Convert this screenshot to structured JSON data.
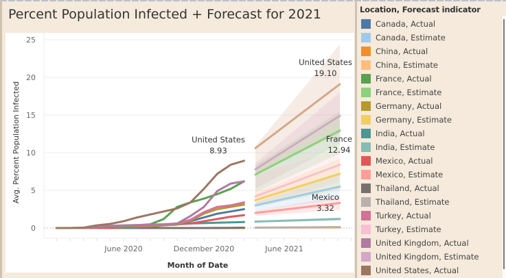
{
  "title": "Percent Population Infected + Forecast for 2021",
  "legend": {
    "title": "Location, Forecast indicator",
    "items": [
      {
        "label": "Canada, Actual",
        "color": "#4e79a7"
      },
      {
        "label": "Canada, Estimate",
        "color": "#a0cbe8"
      },
      {
        "label": "China, Actual",
        "color": "#f28e2b"
      },
      {
        "label": "China, Estimate",
        "color": "#ffbe7d"
      },
      {
        "label": "France, Actual",
        "color": "#59a14f"
      },
      {
        "label": "France, Estimate",
        "color": "#8cd17d"
      },
      {
        "label": "Germany, Actual",
        "color": "#b6992d"
      },
      {
        "label": "Germany, Estimate",
        "color": "#f1ce63"
      },
      {
        "label": "India, Actual",
        "color": "#499894"
      },
      {
        "label": "India, Estimate",
        "color": "#86bcb6"
      },
      {
        "label": "Mexico, Actual",
        "color": "#e15759"
      },
      {
        "label": "Mexico, Estimate",
        "color": "#ff9d9a"
      },
      {
        "label": "Thailand, Actual",
        "color": "#79706e"
      },
      {
        "label": "Thailand, Estimate",
        "color": "#bab0ac"
      },
      {
        "label": "Turkey, Actual",
        "color": "#d37295"
      },
      {
        "label": "Turkey, Estimate",
        "color": "#fabfd2"
      },
      {
        "label": "United Kingdom, Actual",
        "color": "#b07aa1"
      },
      {
        "label": "United Kingdom, Estimate",
        "color": "#d4a6c8"
      },
      {
        "label": "United States, Actual",
        "color": "#9d7660"
      }
    ]
  },
  "chart_data": {
    "type": "line",
    "title": "Percent Population Infected + Forecast for 2021",
    "xlabel": "Month of Date",
    "ylabel": "Avg. Percent Population Infected",
    "ylim": [
      0,
      25
    ],
    "yticks": [
      0,
      5,
      10,
      15,
      20,
      25
    ],
    "xticks": [
      {
        "label": "June 2020",
        "month": 5
      },
      {
        "label": "December 2020",
        "month": 11
      },
      {
        "label": "June 2021",
        "month": 17
      }
    ],
    "x_months_actual": [
      0,
      1,
      2,
      3,
      4,
      5,
      6,
      7,
      8,
      9,
      10,
      11,
      12,
      13,
      14
    ],
    "x_months_estimate": [
      15,
      21
    ],
    "grid": true,
    "legend_position": "right",
    "actual_series": [
      {
        "name": "United States, Actual",
        "color": "#9d7660",
        "values": [
          0,
          0,
          0.05,
          0.35,
          0.55,
          0.9,
          1.4,
          1.8,
          2.2,
          2.6,
          3.4,
          5.2,
          7.2,
          8.4,
          8.93
        ]
      },
      {
        "name": "United Kingdom, Actual",
        "color": "#b07aa1",
        "values": [
          0,
          0,
          0.02,
          0.2,
          0.3,
          0.35,
          0.4,
          0.45,
          0.5,
          0.6,
          1.6,
          2.8,
          4.9,
          5.9,
          6.2
        ]
      },
      {
        "name": "France, Actual",
        "color": "#59a14f",
        "values": [
          0,
          0,
          0.02,
          0.15,
          0.25,
          0.3,
          0.35,
          0.5,
          1.2,
          2.8,
          3.4,
          3.9,
          4.5,
          5.2,
          6.2
        ]
      },
      {
        "name": "Turkey, Actual",
        "color": "#d37295",
        "values": [
          0,
          0,
          0.01,
          0.1,
          0.2,
          0.25,
          0.3,
          0.35,
          0.45,
          0.6,
          1.1,
          2.1,
          2.8,
          3.0,
          3.4
        ]
      },
      {
        "name": "Germany, Actual",
        "color": "#b6992d",
        "values": [
          0,
          0,
          0.02,
          0.15,
          0.2,
          0.22,
          0.25,
          0.3,
          0.35,
          0.5,
          1.0,
          1.9,
          2.5,
          2.8,
          3.1
        ]
      },
      {
        "name": "Canada, Actual",
        "color": "#4e79a7",
        "values": [
          0,
          0,
          0.01,
          0.1,
          0.2,
          0.25,
          0.3,
          0.33,
          0.36,
          0.45,
          0.9,
          1.4,
          1.9,
          2.2,
          2.5
        ]
      },
      {
        "name": "Mexico, Actual",
        "color": "#e15759",
        "values": [
          0,
          0,
          0,
          0.02,
          0.05,
          0.1,
          0.2,
          0.3,
          0.4,
          0.5,
          0.6,
          0.9,
          1.2,
          1.5,
          1.7
        ]
      },
      {
        "name": "India, Actual",
        "color": "#499894",
        "values": [
          0,
          0,
          0,
          0,
          0.01,
          0.03,
          0.1,
          0.2,
          0.35,
          0.5,
          0.6,
          0.65,
          0.7,
          0.75,
          0.8
        ]
      },
      {
        "name": "Thailand, Actual",
        "color": "#79706e",
        "values": [
          0,
          0,
          0,
          0,
          0,
          0,
          0,
          0,
          0,
          0,
          0,
          0,
          0.01,
          0.02,
          0.04
        ]
      },
      {
        "name": "China, Actual",
        "color": "#f28e2b",
        "values": [
          0,
          0,
          0,
          0,
          0,
          0,
          0,
          0,
          0,
          0,
          0,
          0,
          0,
          0,
          0
        ]
      }
    ],
    "estimate_series": [
      {
        "name": "United States, Estimate",
        "color": "#d5a88a",
        "start": 10.6,
        "end": 19.1,
        "lower": [
          7.2,
          12.6
        ],
        "upper": [
          10.9,
          24.4
        ]
      },
      {
        "name": "United Kingdom, Estimate",
        "color": "#d4a6c8",
        "start": 7.8,
        "end": 14.9,
        "lower": [
          5.2,
          11.2
        ],
        "upper": [
          8.6,
          18.0
        ]
      },
      {
        "name": "France, Estimate",
        "color": "#8cd17d",
        "start": 7.1,
        "end": 12.94,
        "lower": [
          4.7,
          9.9
        ],
        "upper": [
          8.3,
          15.5
        ]
      },
      {
        "name": "Turkey, Estimate",
        "color": "#fabfd2",
        "start": 4.2,
        "end": 8.4,
        "lower": [
          2.9,
          6.2
        ],
        "upper": [
          7.0,
          10.5
        ]
      },
      {
        "name": "Germany, Estimate",
        "color": "#f1ce63",
        "start": 3.7,
        "end": 7.2,
        "lower": [
          2.8,
          5.0
        ],
        "upper": [
          4.6,
          9.2
        ]
      },
      {
        "name": "Canada, Estimate",
        "color": "#a0cbe8",
        "start": 3.0,
        "end": 5.5,
        "lower": [
          2.3,
          3.8
        ],
        "upper": [
          3.4,
          7.1
        ]
      },
      {
        "name": "Mexico, Estimate",
        "color": "#ff9d9a",
        "start": 2.0,
        "end": 3.32,
        "lower": [
          1.6,
          2.4
        ],
        "upper": [
          2.3,
          4.2
        ]
      },
      {
        "name": "India, Estimate",
        "color": "#86bcb6",
        "start": 0.85,
        "end": 1.2,
        "lower": [
          0.75,
          0.95
        ],
        "upper": [
          0.95,
          1.4
        ]
      },
      {
        "name": "Thailand, Estimate",
        "color": "#bab0ac",
        "start": 0.05,
        "end": 0.12,
        "lower": [
          0.03,
          0.06
        ],
        "upper": [
          0.07,
          0.18
        ]
      },
      {
        "name": "China, Estimate",
        "color": "#ffbe7d",
        "start": 0.05,
        "end": 0.06,
        "lower": [
          0.04,
          0.05
        ],
        "upper": [
          0.06,
          0.07
        ]
      }
    ],
    "annotations": [
      {
        "label": "United States",
        "value": "8.93",
        "series": "United States, Actual"
      },
      {
        "label": "United States",
        "value": "19.10",
        "series": "United States, Estimate"
      },
      {
        "label": "France",
        "value": "12.94",
        "series": "France, Estimate"
      },
      {
        "label": "Mexico",
        "value": "3.32",
        "series": "Mexico, Estimate"
      }
    ]
  }
}
